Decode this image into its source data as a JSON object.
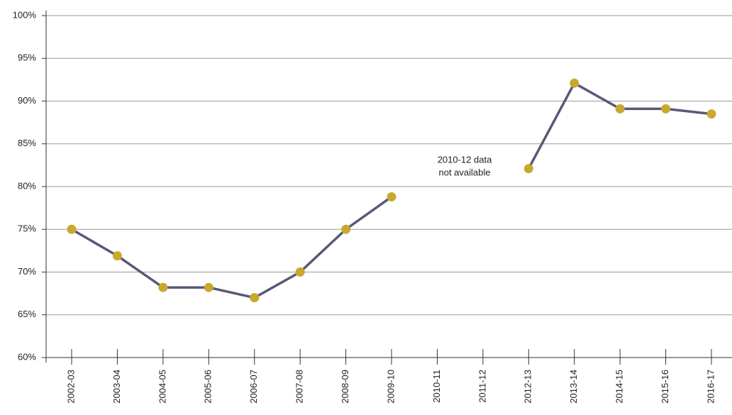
{
  "chart_data": {
    "type": "line",
    "categories": [
      "2002-03",
      "2003-04",
      "2004-05",
      "2005-06",
      "2006-07",
      "2007-08",
      "2008-09",
      "2009-10",
      "2010-11",
      "2011-12",
      "2012-13",
      "2013-14",
      "2014-15",
      "2015-16",
      "2016-17"
    ],
    "series": [
      {
        "name": null,
        "color": "#565a78",
        "marker_color": "#c9a830",
        "values": [
          75,
          71.9,
          68.2,
          68.2,
          67,
          70,
          75,
          78.8,
          null,
          null,
          82.1,
          92.1,
          89.1,
          89.1,
          88.5
        ]
      }
    ],
    "ylim": [
      60,
      100
    ],
    "yticks": [
      {
        "value": 60,
        "label": "60%"
      },
      {
        "value": 65,
        "label": "65%"
      },
      {
        "value": 70,
        "label": "70%"
      },
      {
        "value": 75,
        "label": "75%"
      },
      {
        "value": 80,
        "label": "80%"
      },
      {
        "value": 85,
        "label": "85%"
      },
      {
        "value": 90,
        "label": "90%"
      },
      {
        "value": 95,
        "label": "95%"
      },
      {
        "value": 100,
        "label": "100%"
      }
    ],
    "grid": true,
    "annotation": [
      "2010-12 data",
      "not available"
    ]
  }
}
